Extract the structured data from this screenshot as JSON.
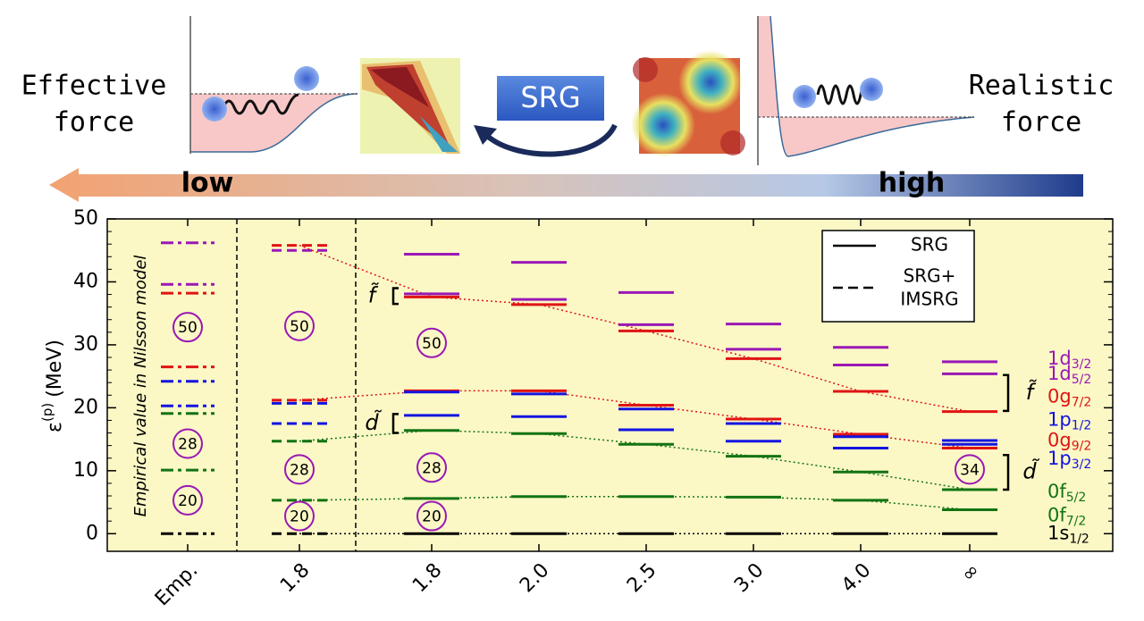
{
  "banner": {
    "left_label": [
      "Effective",
      "force"
    ],
    "right_label": [
      "Realistic",
      "force"
    ],
    "center_label": "SRG",
    "low_label": "low",
    "high_label": "high"
  },
  "chart_data": {
    "type": "levels",
    "ylabel": {
      "symbol": "ε",
      "superscript": "(p)",
      "unit": "(MeV)"
    },
    "column_note": "Empirical value in Nilsson model",
    "categories": [
      "Emp.",
      "1.8",
      "1.8",
      "2.0",
      "2.5",
      "3.0",
      "4.0",
      "∞"
    ],
    "column_styles": [
      "dashdot",
      "dashed",
      "solid",
      "solid",
      "solid",
      "solid",
      "solid",
      "solid"
    ],
    "ylim": [
      -2.8,
      50
    ],
    "yticks": [
      0,
      10,
      20,
      30,
      40,
      50
    ],
    "legend": [
      {
        "label": [
          "SRG"
        ],
        "style": "solid"
      },
      {
        "label": [
          "SRG+",
          "IMSRG"
        ],
        "style": "dashed"
      }
    ],
    "series": [
      {
        "name": "1s",
        "subscript": "1/2",
        "color": "#000000",
        "connected": true,
        "values": [
          0,
          0,
          0,
          0,
          0,
          0,
          0,
          0
        ]
      },
      {
        "name": "0f",
        "subscript": "7/2",
        "color": "#137313",
        "connected": true,
        "values": [
          10.1,
          5.3,
          5.6,
          5.9,
          5.9,
          5.8,
          5.3,
          3.8
        ]
      },
      {
        "name": "0f",
        "subscript": "5/2",
        "color": "#137313",
        "connected": true,
        "values": [
          19.1,
          14.7,
          16.4,
          15.9,
          14.2,
          12.3,
          9.8,
          7.0
        ]
      },
      {
        "name": "1p",
        "subscript": "3/2",
        "color": "#1414e0",
        "connected": false,
        "values": [
          20.3,
          17.5,
          18.8,
          18.6,
          16.5,
          14.7,
          13.6,
          14.2
        ]
      },
      {
        "name": "0g",
        "subscript": "9/2",
        "color": "#e01414",
        "connected": true,
        "values": [
          26.5,
          21.2,
          22.7,
          22.7,
          20.4,
          18.2,
          15.8,
          13.6
        ]
      },
      {
        "name": "1p",
        "subscript": "1/2",
        "color": "#1414e0",
        "connected": false,
        "values": [
          24.2,
          20.7,
          22.5,
          22.2,
          19.8,
          17.5,
          15.4,
          14.8
        ]
      },
      {
        "name": "0g",
        "subscript": "7/2",
        "color": "#e01414",
        "connected": true,
        "values": [
          38.2,
          45.8,
          37.6,
          36.4,
          32.2,
          27.8,
          22.6,
          19.4
        ]
      },
      {
        "name": "1d",
        "subscript": "5/2",
        "color": "#9a18b5",
        "connected": false,
        "values": [
          39.6,
          45.0,
          38.1,
          37.2,
          33.2,
          29.3,
          26.8,
          25.4
        ]
      },
      {
        "name": "1d",
        "subscript": "3/2",
        "color": "#9a18b5",
        "connected": false,
        "values": [
          46.2,
          null,
          44.4,
          43.1,
          38.3,
          33.3,
          29.6,
          27.3
        ]
      }
    ],
    "magic_numbers": [
      [
        {
          "label": "50",
          "y": 32.8
        },
        {
          "label": "28",
          "y": 14.3
        },
        {
          "label": "20",
          "y": 5.3
        }
      ],
      [
        {
          "label": "50",
          "y": 33.0
        },
        {
          "label": "28",
          "y": 10.2
        },
        {
          "label": "20",
          "y": 2.8
        }
      ],
      [
        {
          "label": "50",
          "y": 30.3
        },
        {
          "label": "28",
          "y": 10.5
        },
        {
          "label": "20",
          "y": 2.8
        }
      ],
      [],
      [],
      [],
      [],
      [
        {
          "label": "34",
          "y": 10.2
        }
      ]
    ],
    "brackets": [
      {
        "label": "f̃",
        "range": [
          36.5,
          39.0
        ]
      },
      {
        "label": "d̃",
        "range": [
          16.0,
          19.0
        ]
      },
      {
        "label": "f̃",
        "range": [
          19.5,
          25.2
        ]
      },
      {
        "label": "d̃",
        "range": [
          7.0,
          12.5
        ]
      }
    ]
  }
}
